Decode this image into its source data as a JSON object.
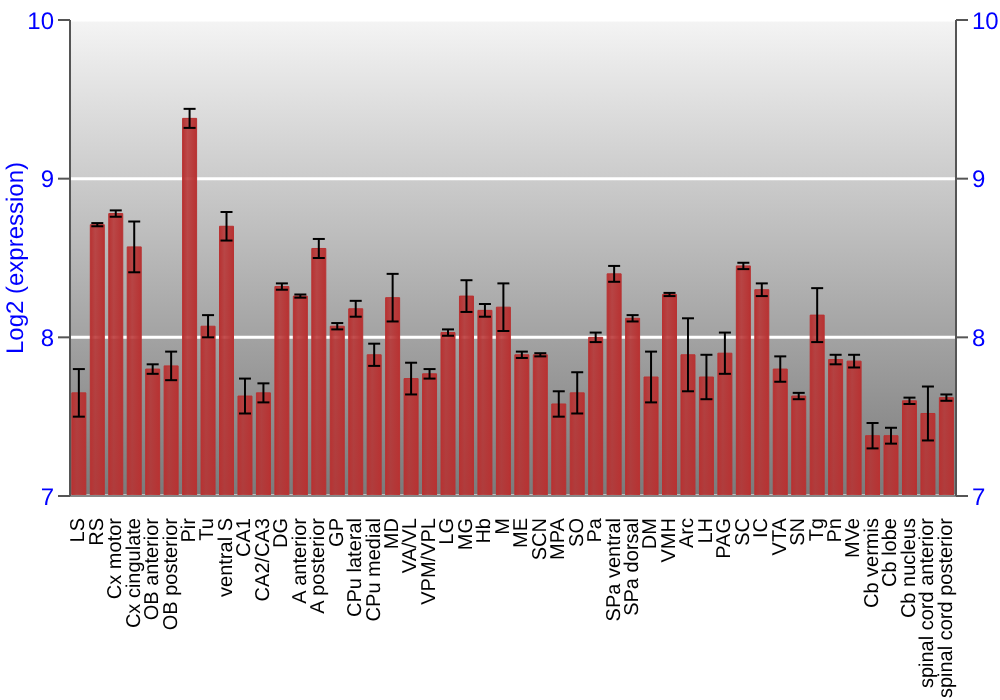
{
  "chart_data": {
    "type": "bar",
    "ylabel": "Log2 (expression)",
    "categories": [
      "LS",
      "RS",
      "Cx motor",
      "Cx cingulate",
      "OB anterior",
      "OB posterior",
      "Pir",
      "Tu",
      "ventral S",
      "CA1",
      "CA2/CA3",
      "DG",
      "A anterior",
      "A posterior",
      "GP",
      "CPu lateral",
      "CPu medial",
      "MD",
      "VA/VL",
      "VPM/VPL",
      "LG",
      "MG",
      "Hb",
      "M",
      "ME",
      "SCN",
      "MPA",
      "SO",
      "Pa",
      "SPa ventral",
      "SPa dorsal",
      "DM",
      "VMH",
      "Arc",
      "LH",
      "PAG",
      "SC",
      "IC",
      "VTA",
      "SN",
      "Tg",
      "Pn",
      "MVe",
      "Cb vermis",
      "Cb lobe",
      "Cb nucleus",
      "spinal cord anterior",
      "spinal cord posterior"
    ],
    "values": [
      7.65,
      8.71,
      8.78,
      8.57,
      7.8,
      7.82,
      9.38,
      8.07,
      8.7,
      7.63,
      7.65,
      8.32,
      8.26,
      8.56,
      8.07,
      8.18,
      7.89,
      8.25,
      7.74,
      7.77,
      8.03,
      8.26,
      8.17,
      8.19,
      7.89,
      7.89,
      7.58,
      7.65,
      8.0,
      8.4,
      8.12,
      7.75,
      8.27,
      7.89,
      7.75,
      7.9,
      8.45,
      8.3,
      7.8,
      7.63,
      8.14,
      7.86,
      7.85,
      7.38,
      7.38,
      7.6,
      7.52,
      7.62
    ],
    "errors": [
      0.15,
      0.01,
      0.02,
      0.16,
      0.03,
      0.09,
      0.06,
      0.07,
      0.09,
      0.11,
      0.06,
      0.02,
      0.01,
      0.06,
      0.02,
      0.05,
      0.07,
      0.15,
      0.1,
      0.03,
      0.02,
      0.1,
      0.04,
      0.15,
      0.02,
      0.01,
      0.08,
      0.13,
      0.03,
      0.05,
      0.02,
      0.16,
      0.01,
      0.23,
      0.14,
      0.13,
      0.02,
      0.04,
      0.08,
      0.02,
      0.17,
      0.03,
      0.04,
      0.08,
      0.05,
      0.02,
      0.17,
      0.02
    ],
    "color": "#b83232",
    "ylim": [
      7,
      10
    ],
    "yticks": [
      7,
      8,
      9,
      10
    ],
    "y2lim": [
      7,
      10
    ],
    "y2ticks": [
      7,
      8,
      9,
      10
    ],
    "grid": "y"
  }
}
